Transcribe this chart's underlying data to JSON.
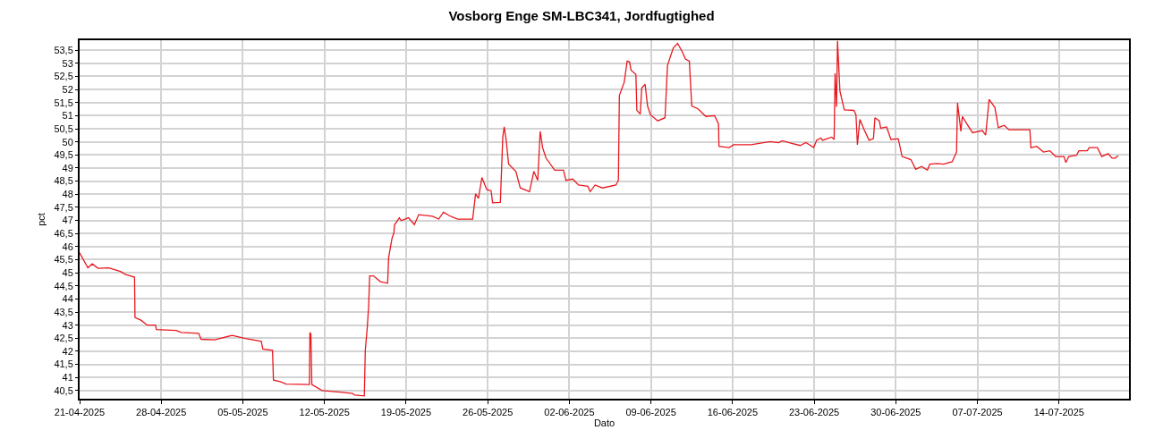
{
  "chart_data": {
    "type": "line",
    "title": "Vosborg Enge SM-LBC341, Jordfugtighed",
    "xlabel": "Dato",
    "ylabel": "pct",
    "grid": true,
    "marker": "none",
    "line_style": "solid",
    "xlim": [
      "2025-04-21",
      "2025-07-20"
    ],
    "ylim": [
      40.19,
      53.88
    ],
    "xticks": [
      {
        "value": "2025-04-21",
        "label": "21-04-2025"
      },
      {
        "value": "2025-04-28",
        "label": "28-04-2025"
      },
      {
        "value": "2025-05-05",
        "label": "05-05-2025"
      },
      {
        "value": "2025-05-12",
        "label": "12-05-2025"
      },
      {
        "value": "2025-05-19",
        "label": "19-05-2025"
      },
      {
        "value": "2025-05-26",
        "label": "26-05-2025"
      },
      {
        "value": "2025-06-02",
        "label": "02-06-2025"
      },
      {
        "value": "2025-06-09",
        "label": "09-06-2025"
      },
      {
        "value": "2025-06-16",
        "label": "16-06-2025"
      },
      {
        "value": "2025-06-23",
        "label": "23-06-2025"
      },
      {
        "value": "2025-06-30",
        "label": "30-06-2025"
      },
      {
        "value": "2025-07-07",
        "label": "07-07-2025"
      },
      {
        "value": "2025-07-14",
        "label": "14-07-2025"
      }
    ],
    "yticks": [
      {
        "value": 40.5,
        "label": "40,5"
      },
      41,
      {
        "value": 41.5,
        "label": "41,5"
      },
      42,
      {
        "value": 42.5,
        "label": "42,5"
      },
      43,
      {
        "value": 43.5,
        "label": "43,5"
      },
      44,
      {
        "value": 44.5,
        "label": "44,5"
      },
      45,
      {
        "value": 45.5,
        "label": "45,5"
      },
      46,
      {
        "value": 46.5,
        "label": "46,5"
      },
      47,
      {
        "value": 47.5,
        "label": "47,5"
      },
      48,
      {
        "value": 48.5,
        "label": "48,5"
      },
      49,
      {
        "value": 49.5,
        "label": "49,5"
      },
      50,
      {
        "value": 50.5,
        "label": "50,5"
      },
      51,
      {
        "value": 51.5,
        "label": "51,5"
      },
      52,
      {
        "value": 52.5,
        "label": "52,5"
      },
      53,
      {
        "value": 53.5,
        "label": "53,5"
      }
    ],
    "series": [
      {
        "color": "#e8191f",
        "x": [
          "2025-04-21T00:00",
          "2025-04-21T17:00",
          "2025-04-22T02:00",
          "2025-04-22T14:00",
          "2025-04-23T12:00",
          "2025-04-24T12:00",
          "2025-04-24T22:00",
          "2025-04-25T17:00",
          "2025-04-25T18:00",
          "2025-04-26T07:00",
          "2025-04-26T19:00",
          "2025-04-27T12:00",
          "2025-04-27T14:00",
          "2025-04-29T07:00",
          "2025-04-29T17:00",
          "2025-05-01T05:00",
          "2025-05-01T10:00",
          "2025-05-02T14:00",
          "2025-05-04T02:00",
          "2025-05-05T05:00",
          "2025-05-06T14:00",
          "2025-05-06T17:00",
          "2025-05-07T13:00",
          "2025-05-07T15:00",
          "2025-05-08T05:00",
          "2025-05-08T17:00",
          "2025-05-10T17:00",
          "2025-05-10T18:00",
          "2025-05-10T20:00",
          "2025-05-10T22:00",
          "2025-05-11T19:00",
          "2025-05-13T08:00",
          "2025-05-14T10:00",
          "2025-05-14T14:00",
          "2025-05-15T10:00",
          "2025-05-15T12:00",
          "2025-05-15T16:00",
          "2025-05-15T19:00",
          "2025-05-15T21:00",
          "2025-05-16T05:00",
          "2025-05-16T19:00",
          "2025-05-17T10:00",
          "2025-05-17T12:00",
          "2025-05-17T19:00",
          "2025-05-17T23:00",
          "2025-05-18T00:00",
          "2025-05-18T10:00",
          "2025-05-18T14:00",
          "2025-05-19T05:00",
          "2025-05-19T17:00",
          "2025-05-20T02:00",
          "2025-05-21T06:00",
          "2025-05-21T19:00",
          "2025-05-22T05:00",
          "2025-05-22T17:00",
          "2025-05-23T10:00",
          "2025-05-24T17:00",
          "2025-05-24T23:00",
          "2025-05-25T05:00",
          "2025-05-25T12:00",
          "2025-05-25T22:00",
          "2025-05-26T07:00",
          "2025-05-26T10:00",
          "2025-05-27T02:00",
          "2025-05-27T07:00",
          "2025-05-27T10:00",
          "2025-05-27T14:00",
          "2025-05-27T19:00",
          "2025-05-28T10:00",
          "2025-05-28T19:00",
          "2025-05-29T14:00",
          "2025-05-29T23:00",
          "2025-05-30T07:00",
          "2025-05-30T12:00",
          "2025-05-30T17:00",
          "2025-05-31T00:00",
          "2025-05-31T18:00",
          "2025-06-01T12:00",
          "2025-06-01T17:00",
          "2025-06-02T07:00",
          "2025-06-02T19:00",
          "2025-06-03T14:00",
          "2025-06-03T19:00",
          "2025-06-04T05:00",
          "2025-06-04T20:00",
          "2025-06-06T00:00",
          "2025-06-06T05:00",
          "2025-06-06T07:00",
          "2025-06-06T17:00",
          "2025-06-06T23:00",
          "2025-06-07T04:00",
          "2025-06-07T07:00",
          "2025-06-07T17:00",
          "2025-06-07T19:00",
          "2025-06-08T02:00",
          "2025-06-08T05:00",
          "2025-06-08T12:00",
          "2025-06-08T17:00",
          "2025-06-08T23:00",
          "2025-06-09T14:00",
          "2025-06-10T05:00",
          "2025-06-10T10:00",
          "2025-06-10T22:00",
          "2025-06-11T07:00",
          "2025-06-11T17:00",
          "2025-06-11T23:00",
          "2025-06-12T07:00",
          "2025-06-12T12:00",
          "2025-06-13T01:00",
          "2025-06-13T17:00",
          "2025-06-14T11:00",
          "2025-06-14T19:00",
          "2025-06-14T20:00",
          "2025-06-15T17:00",
          "2025-06-16T02:00",
          "2025-06-17T14:00",
          "2025-06-19T05:00",
          "2025-06-19T23:00",
          "2025-06-20T06:00",
          "2025-06-21T00:00",
          "2025-06-21T19:00",
          "2025-06-22T07:00",
          "2025-06-22T23:00",
          "2025-06-23T05:00",
          "2025-06-23T14:00",
          "2025-06-23T17:00",
          "2025-06-24T12:00",
          "2025-06-24T17:00",
          "2025-06-24T19:00",
          "2025-06-24T22:00",
          "2025-06-25T00:00",
          "2025-06-25T05:00",
          "2025-06-25T14:00",
          "2025-06-26T10:00",
          "2025-06-26T14:00",
          "2025-06-26T17:00",
          "2025-06-26T22:00",
          "2025-06-27T07:00",
          "2025-06-27T17:00",
          "2025-06-28T02:00",
          "2025-06-28T05:00",
          "2025-06-28T14:00",
          "2025-06-28T17:00",
          "2025-06-29T05:00",
          "2025-06-29T14:00",
          "2025-06-30T05:00",
          "2025-06-30T13:00",
          "2025-07-01T07:00",
          "2025-07-01T17:00",
          "2025-07-02T05:00",
          "2025-07-02T17:00",
          "2025-07-02T22:00",
          "2025-07-03T14:00",
          "2025-07-04T02:00",
          "2025-07-04T20:00",
          "2025-07-05T05:00",
          "2025-07-05T07:00",
          "2025-07-05T14:00",
          "2025-07-05T17:00",
          "2025-07-06T02:00",
          "2025-07-06T14:00",
          "2025-07-07T10:00",
          "2025-07-07T17:00",
          "2025-07-08T00:00",
          "2025-07-08T12:00",
          "2025-07-08T19:00",
          "2025-07-09T07:00",
          "2025-07-09T17:00",
          "2025-07-11T12:00",
          "2025-07-11T14:00",
          "2025-07-12T02:00",
          "2025-07-12T16:00",
          "2025-07-13T05:00",
          "2025-07-13T17:00",
          "2025-07-14T10:00",
          "2025-07-14T14:00",
          "2025-07-14T20:00",
          "2025-07-15T12:00",
          "2025-07-15T17:00",
          "2025-07-16T10:00",
          "2025-07-16T14:00",
          "2025-07-17T07:00",
          "2025-07-17T16:00",
          "2025-07-18T05:00",
          "2025-07-18T13:00",
          "2025-07-18T19:00",
          "2025-07-19T02:00"
        ],
        "values": [
          45.76,
          45.19,
          45.34,
          45.17,
          45.19,
          45.05,
          44.94,
          44.83,
          43.29,
          43.18,
          43.0,
          43.0,
          42.83,
          42.8,
          42.72,
          42.69,
          42.46,
          42.44,
          42.61,
          42.49,
          42.38,
          42.09,
          42.04,
          40.9,
          40.84,
          40.75,
          40.73,
          42.72,
          42.66,
          40.73,
          40.5,
          40.44,
          40.39,
          40.33,
          40.3,
          42.04,
          42.89,
          43.75,
          44.88,
          44.88,
          44.66,
          44.6,
          45.57,
          46.31,
          46.53,
          46.82,
          47.1,
          46.99,
          47.1,
          46.84,
          47.22,
          47.16,
          47.05,
          47.31,
          47.18,
          47.05,
          47.05,
          48.01,
          47.84,
          48.64,
          48.18,
          48.13,
          47.67,
          47.69,
          50.18,
          50.57,
          50.06,
          49.15,
          48.87,
          48.24,
          48.1,
          48.87,
          48.53,
          50.4,
          49.78,
          49.38,
          48.92,
          48.92,
          48.53,
          48.58,
          48.35,
          48.3,
          48.1,
          48.35,
          48.24,
          48.35,
          48.53,
          51.77,
          52.28,
          53.08,
          53.05,
          52.74,
          52.57,
          51.2,
          51.06,
          52.05,
          52.2,
          51.37,
          51.03,
          50.8,
          50.92,
          52.91,
          53.59,
          53.76,
          53.42,
          53.16,
          53.08,
          51.37,
          51.26,
          50.97,
          51.0,
          50.69,
          49.83,
          49.78,
          49.89,
          49.89,
          50.01,
          49.97,
          50.04,
          49.95,
          49.86,
          49.97,
          49.78,
          50.06,
          50.15,
          50.06,
          50.18,
          50.09,
          52.62,
          51.34,
          53.85,
          51.94,
          51.22,
          51.2,
          51.03,
          49.89,
          50.86,
          50.46,
          50.06,
          50.12,
          50.92,
          50.8,
          50.52,
          50.57,
          50.09,
          50.12,
          49.44,
          49.32,
          48.95,
          49.06,
          48.92,
          49.15,
          49.17,
          49.15,
          49.24,
          49.61,
          51.49,
          50.4,
          50.97,
          50.69,
          50.35,
          50.43,
          50.26,
          51.62,
          51.31,
          50.54,
          50.63,
          50.46,
          50.46,
          49.78,
          49.83,
          49.61,
          49.66,
          49.44,
          49.44,
          49.21,
          49.44,
          49.49,
          49.66,
          49.66,
          49.78,
          49.78,
          49.44,
          49.55,
          49.38,
          49.38,
          49.47
        ]
      }
    ]
  }
}
